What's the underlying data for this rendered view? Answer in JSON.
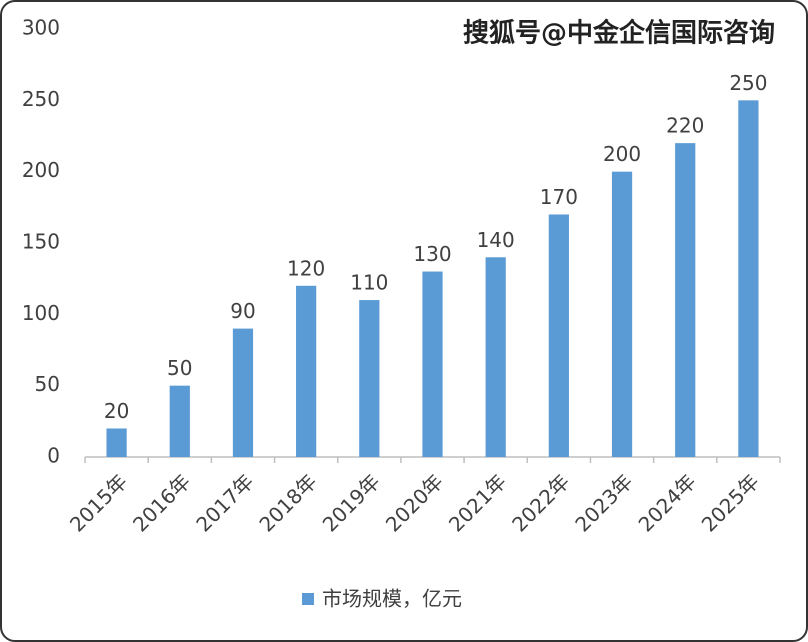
{
  "chart_data": {
    "type": "bar",
    "watermark": "搜狐号@中金企信国际咨询",
    "categories": [
      "2015年",
      "2016年",
      "2017年",
      "2018年",
      "2019年",
      "2020年",
      "2021年",
      "2022年",
      "2023年",
      "2024年",
      "2025年"
    ],
    "series": [
      {
        "name": "市场规模，亿元",
        "color": "#5b9bd5",
        "values": [
          20,
          50,
          90,
          120,
          110,
          130,
          140,
          170,
          200,
          220,
          250
        ]
      }
    ],
    "ylim": [
      0,
      300
    ],
    "yticks": [
      0,
      50,
      100,
      150,
      200,
      250,
      300
    ],
    "grid": false
  }
}
